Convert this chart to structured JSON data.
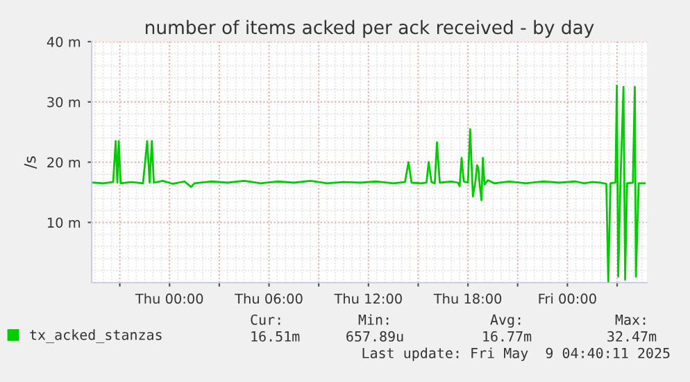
{
  "chart_data": {
    "type": "line",
    "title": "number of items acked per ack received - by day",
    "ylabel": "/s",
    "x": [
      "2025-05-07T19:24",
      "2025-05-07T20:00",
      "2025-05-07T20:36",
      "2025-05-07T20:45",
      "2025-05-07T20:51",
      "2025-05-07T20:56",
      "2025-05-07T21:03",
      "2025-05-07T21:42",
      "2025-05-07T22:24",
      "2025-05-07T22:39",
      "2025-05-07T22:48",
      "2025-05-07T22:56",
      "2025-05-07T23:03",
      "2025-05-07T23:36",
      "2025-05-08T00:12",
      "2025-05-08T00:54",
      "2025-05-08T01:18",
      "2025-05-08T01:30",
      "2025-05-08T02:30",
      "2025-05-08T03:30",
      "2025-05-08T04:30",
      "2025-05-08T05:30",
      "2025-05-08T06:30",
      "2025-05-08T07:30",
      "2025-05-08T08:30",
      "2025-05-08T09:30",
      "2025-05-08T10:30",
      "2025-05-08T11:30",
      "2025-05-08T12:30",
      "2025-05-08T13:30",
      "2025-05-08T14:12",
      "2025-05-08T14:25",
      "2025-05-08T14:36",
      "2025-05-08T15:12",
      "2025-05-08T15:30",
      "2025-05-08T15:38",
      "2025-05-08T15:48",
      "2025-05-08T16:00",
      "2025-05-08T16:08",
      "2025-05-08T16:18",
      "2025-05-08T17:00",
      "2025-05-08T17:24",
      "2025-05-08T17:30",
      "2025-05-08T17:37",
      "2025-05-08T17:45",
      "2025-05-08T18:00",
      "2025-05-08T18:08",
      "2025-05-08T18:18",
      "2025-05-08T18:27",
      "2025-05-08T18:33",
      "2025-05-08T18:38",
      "2025-05-08T18:42",
      "2025-05-08T18:49",
      "2025-05-08T18:54",
      "2025-05-08T19:00",
      "2025-05-08T19:12",
      "2025-05-08T19:36",
      "2025-05-08T20:30",
      "2025-05-08T21:30",
      "2025-05-08T22:30",
      "2025-05-08T23:30",
      "2025-05-09T00:30",
      "2025-05-09T01:00",
      "2025-05-09T01:30",
      "2025-05-09T02:00",
      "2025-05-09T02:21",
      "2025-05-09T02:28",
      "2025-05-09T02:36",
      "2025-05-09T02:54",
      "2025-05-09T02:59",
      "2025-05-09T03:04",
      "2025-05-09T03:12",
      "2025-05-09T03:23",
      "2025-05-09T03:29",
      "2025-05-09T03:36",
      "2025-05-09T03:57",
      "2025-05-09T04:04",
      "2025-05-09T04:08",
      "2025-05-09T04:18",
      "2025-05-09T04:40"
    ],
    "series": [
      {
        "name": "tx_acked_stanzas",
        "color": "#00cc00",
        "values": [
          16.6,
          16.5,
          16.7,
          23.5,
          16.6,
          23.5,
          16.5,
          16.7,
          16.5,
          23.5,
          16.6,
          23.5,
          16.6,
          16.9,
          16.4,
          16.8,
          15.9,
          16.5,
          16.8,
          16.6,
          16.9,
          16.5,
          16.8,
          16.6,
          16.9,
          16.5,
          16.7,
          16.6,
          16.8,
          16.5,
          16.7,
          20.0,
          16.6,
          16.5,
          16.6,
          20.0,
          16.7,
          16.5,
          23.3,
          16.6,
          16.8,
          16.6,
          16.0,
          20.7,
          16.8,
          16.6,
          25.5,
          14.3,
          16.8,
          19.5,
          18.9,
          16.5,
          13.7,
          20.7,
          16.3,
          17.0,
          16.5,
          16.8,
          16.5,
          16.8,
          16.6,
          16.8,
          16.5,
          16.7,
          16.6,
          16.4,
          0.2,
          16.5,
          16.6,
          32.7,
          1.0,
          16.5,
          32.5,
          0.5,
          16.5,
          16.6,
          32.5,
          1.0,
          16.5,
          16.5
        ]
      }
    ],
    "xlim": [
      "2025-05-07T19:18",
      "2025-05-09T04:48"
    ],
    "xticks": [
      {
        "value": "2025-05-07T21:00",
        "label": null
      },
      {
        "value": "2025-05-08T00:00",
        "label": "Thu 00:00"
      },
      {
        "value": "2025-05-08T03:00",
        "label": null
      },
      {
        "value": "2025-05-08T06:00",
        "label": "Thu 06:00"
      },
      {
        "value": "2025-05-08T09:00",
        "label": null
      },
      {
        "value": "2025-05-08T12:00",
        "label": "Thu 12:00"
      },
      {
        "value": "2025-05-08T15:00",
        "label": null
      },
      {
        "value": "2025-05-08T18:00",
        "label": "Thu 18:00"
      },
      {
        "value": "2025-05-08T21:00",
        "label": null
      },
      {
        "value": "2025-05-09T00:00",
        "label": "Fri 00:00"
      },
      {
        "value": "2025-05-09T03:00",
        "label": null
      }
    ],
    "ylim": [
      0,
      40
    ],
    "yticks": [
      {
        "value": 10,
        "label": "10 m"
      },
      {
        "value": 20,
        "label": "20 m"
      },
      {
        "value": 30,
        "label": "30 m"
      },
      {
        "value": 40,
        "label": "40 m"
      }
    ],
    "grid": true,
    "legend": "bottom",
    "marker": "none",
    "line_style": "solid",
    "annotations": [
      "Cur:",
      "16.51m",
      "Min:",
      "657.89u",
      "Avg:",
      "16.77m",
      "Max:",
      "32.47m",
      "Last update: Fri May  9 04:40:11 2025"
    ]
  }
}
